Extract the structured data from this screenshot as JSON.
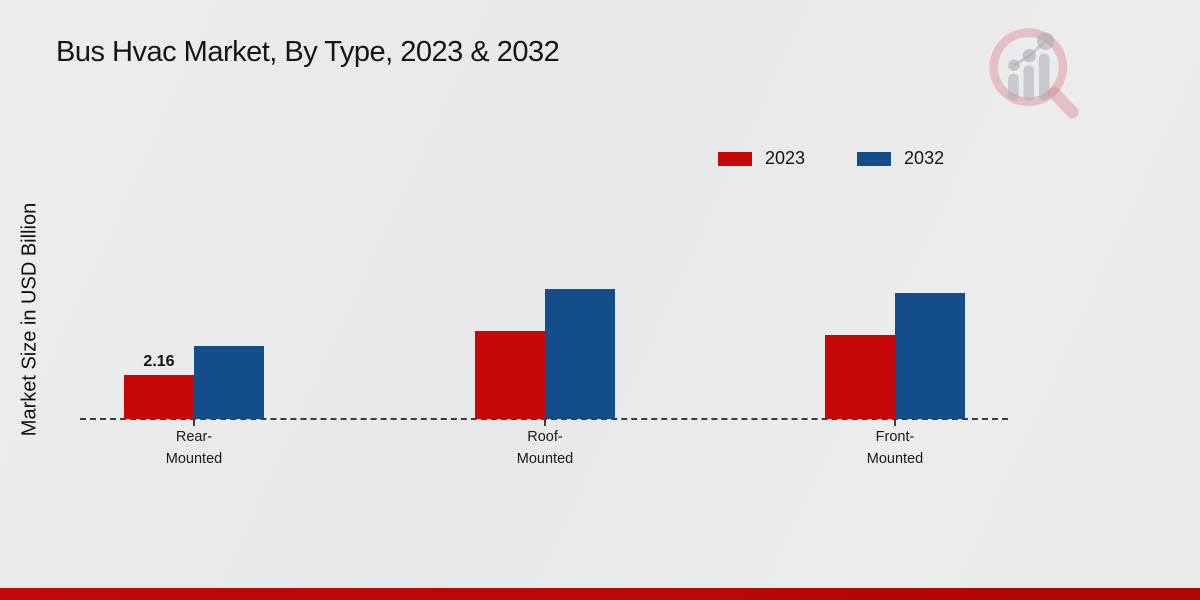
{
  "title": "Bus Hvac Market, By Type, 2023 & 2032",
  "chart_data": {
    "type": "bar",
    "title": "Bus Hvac Market, By Type, 2023 & 2032",
    "xlabel": "",
    "ylabel": "Market Size in USD Billion",
    "categories": [
      "Rear-Mounted",
      "Roof-Mounted",
      "Front-Mounted"
    ],
    "series": [
      {
        "name": "2023",
        "color": "#c60808",
        "values": [
          2.16,
          4.3,
          4.1
        ]
      },
      {
        "name": "2032",
        "color": "#134e8a",
        "values": [
          3.6,
          6.4,
          6.2
        ]
      }
    ],
    "bar_labels": [
      {
        "series_index": 0,
        "category_index": 0,
        "text": "2.16"
      }
    ],
    "ylim": [
      0,
      7
    ],
    "grid": false,
    "y_axis_ticks_visible": false,
    "baseline_style": "dashed",
    "legend_position": "top-right"
  },
  "watermark": {
    "name": "market-research-logo"
  },
  "colors": {
    "background": "#eaeaea",
    "footer_bar": "#b70707",
    "axis_dash": "#3c3c3c",
    "title_text": "#161616"
  }
}
